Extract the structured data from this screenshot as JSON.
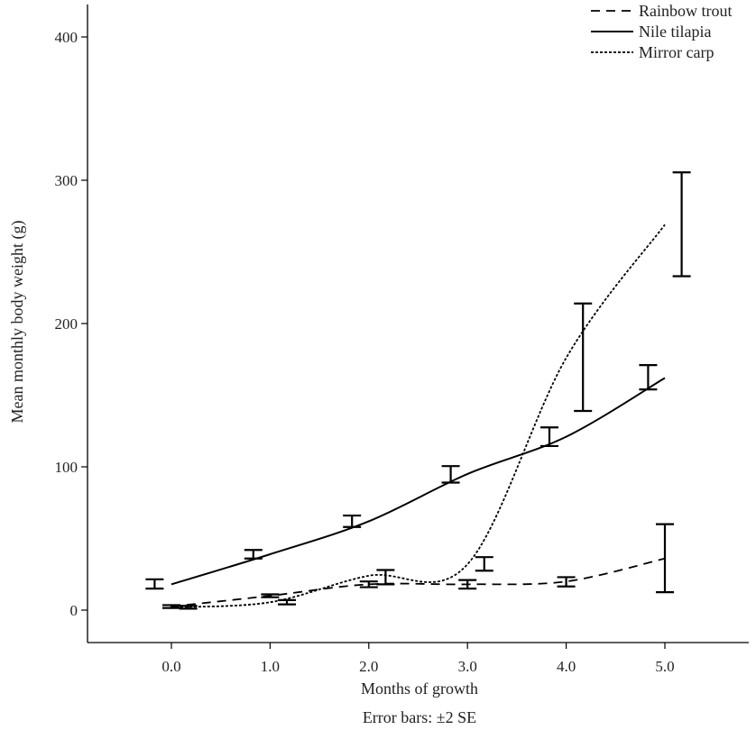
{
  "chart_data": {
    "type": "line",
    "title": "",
    "xlabel": "Months of growth",
    "ylabel": "Mean monthly body weight (g)",
    "caption": "Error bars: ±2 SE",
    "xlim": [
      -0.85,
      5.85
    ],
    "ylim": [
      0,
      425
    ],
    "x_ticks": [
      0,
      1,
      2,
      3,
      4,
      5
    ],
    "x_tick_labels": [
      "0.0",
      "1.0",
      "2.0",
      "3.0",
      "4.0",
      "5.0"
    ],
    "y_ticks": [
      0,
      100,
      200,
      300,
      400
    ],
    "y_tick_labels": [
      "0",
      "100",
      "200",
      "300",
      "400"
    ],
    "grid": false,
    "legend_position": "top-right",
    "series": [
      {
        "name": "Rainbow trout",
        "style": "dashed",
        "x": [
          0,
          1,
          2,
          3,
          4,
          5
        ],
        "values": [
          2.5,
          10,
          18,
          18,
          20,
          36
        ],
        "error_low": [
          1.5,
          9,
          16,
          15,
          16.5,
          12.5
        ],
        "error_high": [
          3.5,
          11,
          20,
          21,
          23,
          60
        ]
      },
      {
        "name": "Nile tilapia",
        "style": "solid",
        "x": [
          0,
          1,
          2,
          3,
          4,
          5
        ],
        "values": [
          18,
          39,
          62,
          95,
          121,
          162
        ],
        "error_low": [
          15,
          36,
          58,
          89,
          114.5,
          154
        ],
        "error_high": [
          21.5,
          42,
          66,
          100.5,
          127.5,
          171
        ]
      },
      {
        "name": "Mirror carp",
        "style": "dotted",
        "x": [
          0,
          1,
          2,
          3,
          4,
          5
        ],
        "values": [
          2,
          5.5,
          24,
          32,
          176,
          269
        ],
        "error_low": [
          1,
          4,
          18,
          27.5,
          139,
          233
        ],
        "error_high": [
          3,
          7,
          28,
          37,
          214,
          305.5
        ]
      }
    ]
  }
}
